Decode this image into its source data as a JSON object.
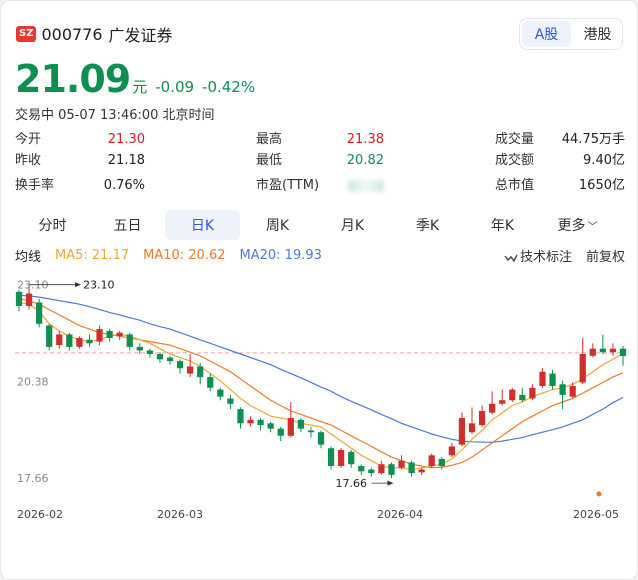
{
  "header": {
    "exchange": "SZ",
    "code": "000776",
    "name": "广发证券",
    "market_tabs": [
      "A股",
      "港股"
    ],
    "active_market": "A股"
  },
  "quote": {
    "price": "21.09",
    "unit": "元",
    "change": "-0.09",
    "change_pct": "-0.42%",
    "status": "交易中 05-07 13:46:00 北京时间"
  },
  "stats": {
    "open_label": "今开",
    "open": "21.30",
    "prev_close_label": "昨收",
    "prev_close": "21.18",
    "turnover_rate_label": "换手率",
    "turnover_rate": "0.76%",
    "high_label": "最高",
    "high": "21.38",
    "low_label": "最低",
    "low": "20.82",
    "pe_label": "市盈(TTM)",
    "volume_label": "成交量",
    "volume": "44.75万手",
    "amount_label": "成交额",
    "amount": "9.40亿",
    "mkt_cap_label": "总市值",
    "mkt_cap": "1650亿"
  },
  "periods": [
    "分时",
    "五日",
    "日K",
    "周K",
    "月K",
    "季K",
    "年K",
    "更多"
  ],
  "active_period": "日K",
  "indicators": {
    "label": "均线",
    "ma5": "MA5: 21.17",
    "ma10": "MA10: 20.62",
    "ma20": "MA20: 19.93",
    "tech_label": "技术标注",
    "adjust_label": "前复权"
  },
  "colors": {
    "up": "#d0302c",
    "down": "#0f8f52",
    "ma5": "#f0a830",
    "ma10": "#ee7a2a",
    "ma20": "#4a7ad8",
    "accent": "#2a5bd7"
  },
  "chart_data": {
    "type": "candlestick",
    "ylim": [
      17.1,
      23.4
    ],
    "y_ticks": [
      "23.10",
      "20.38",
      "17.66"
    ],
    "dates": [
      "2026-02",
      "2026-03",
      "2026-04",
      "2026-05"
    ],
    "annotations": {
      "max": "23.10",
      "min": "17.66"
    },
    "reference_price": 21.18,
    "candles": [
      [
        22.9,
        22.5,
        22.95,
        22.35
      ],
      [
        22.5,
        22.85,
        23.1,
        22.4
      ],
      [
        22.6,
        22.0,
        22.7,
        21.9
      ],
      [
        21.95,
        21.35,
        22.0,
        21.25
      ],
      [
        21.4,
        21.7,
        21.8,
        21.3
      ],
      [
        21.7,
        21.35,
        21.75,
        21.25
      ],
      [
        21.35,
        21.6,
        21.65,
        21.3
      ],
      [
        21.55,
        21.45,
        21.7,
        21.35
      ],
      [
        21.5,
        21.85,
        21.95,
        21.4
      ],
      [
        21.8,
        21.6,
        21.85,
        21.5
      ],
      [
        21.65,
        21.75,
        21.8,
        21.55
      ],
      [
        21.7,
        21.35,
        21.75,
        21.25
      ],
      [
        21.35,
        21.25,
        21.45,
        21.15
      ],
      [
        21.25,
        21.15,
        21.3,
        21.05
      ],
      [
        21.15,
        21.0,
        21.2,
        20.9
      ],
      [
        21.05,
        20.95,
        21.1,
        20.85
      ],
      [
        20.95,
        20.75,
        21.0,
        20.6
      ],
      [
        20.6,
        20.8,
        21.15,
        20.5
      ],
      [
        20.8,
        20.5,
        20.9,
        20.3
      ],
      [
        20.5,
        20.2,
        20.6,
        20.1
      ],
      [
        20.15,
        19.95,
        20.2,
        19.85
      ],
      [
        19.9,
        19.75,
        20.0,
        19.6
      ],
      [
        19.6,
        19.2,
        19.65,
        19.05
      ],
      [
        19.2,
        19.3,
        19.4,
        19.1
      ],
      [
        19.3,
        19.15,
        19.35,
        19.0
      ],
      [
        19.2,
        19.05,
        19.25,
        18.95
      ],
      [
        19.05,
        18.85,
        19.1,
        18.7
      ],
      [
        18.85,
        19.35,
        19.8,
        18.8
      ],
      [
        19.3,
        19.05,
        19.35,
        18.95
      ],
      [
        19.0,
        18.95,
        19.1,
        18.8
      ],
      [
        18.95,
        18.6,
        19.0,
        18.5
      ],
      [
        18.5,
        18.0,
        18.55,
        17.9
      ],
      [
        18.0,
        18.45,
        18.5,
        17.95
      ],
      [
        18.4,
        18.05,
        18.45,
        17.95
      ],
      [
        18.0,
        17.85,
        18.05,
        17.75
      ],
      [
        17.9,
        17.8,
        17.95,
        17.7
      ],
      [
        17.8,
        18.05,
        18.15,
        17.75
      ],
      [
        18.05,
        17.75,
        18.1,
        17.66
      ],
      [
        17.95,
        18.15,
        18.3,
        17.9
      ],
      [
        18.1,
        17.8,
        18.15,
        17.7
      ],
      [
        17.82,
        17.9,
        17.95,
        17.75
      ],
      [
        18.0,
        18.3,
        18.35,
        17.95
      ],
      [
        18.2,
        18.0,
        18.25,
        17.9
      ],
      [
        18.3,
        18.55,
        18.65,
        18.25
      ],
      [
        18.6,
        19.35,
        19.5,
        18.55
      ],
      [
        18.95,
        19.2,
        19.65,
        18.9
      ],
      [
        19.15,
        19.55,
        19.7,
        19.1
      ],
      [
        19.5,
        19.75,
        20.1,
        19.45
      ],
      [
        19.75,
        19.85,
        20.15,
        19.7
      ],
      [
        19.85,
        20.15,
        20.2,
        19.8
      ],
      [
        20.0,
        19.85,
        20.2,
        19.8
      ],
      [
        19.9,
        20.2,
        20.3,
        19.85
      ],
      [
        20.25,
        20.65,
        20.75,
        20.2
      ],
      [
        20.6,
        20.25,
        20.7,
        20.15
      ],
      [
        20.3,
        20.0,
        20.4,
        19.6
      ],
      [
        19.95,
        20.25,
        20.35,
        19.9
      ],
      [
        20.35,
        21.15,
        21.6,
        20.3
      ],
      [
        21.1,
        21.3,
        21.45,
        21.05
      ],
      [
        21.3,
        21.2,
        21.7,
        21.15
      ],
      [
        21.2,
        21.3,
        21.45,
        21.1
      ],
      [
        21.3,
        21.09,
        21.38,
        20.82
      ]
    ],
    "ma5": [
      22.6,
      22.55,
      22.35,
      22.0,
      21.8,
      21.65,
      21.55,
      21.5,
      21.55,
      21.65,
      21.7,
      21.65,
      21.55,
      21.45,
      21.3,
      21.15,
      21.05,
      20.95,
      20.8,
      20.6,
      20.4,
      20.15,
      19.9,
      19.7,
      19.55,
      19.4,
      19.35,
      19.3,
      19.2,
      19.15,
      19.1,
      18.9,
      18.7,
      18.5,
      18.3,
      18.15,
      18.0,
      17.95,
      17.95,
      17.9,
      17.95,
      18.0,
      18.05,
      18.2,
      18.45,
      18.75,
      19.0,
      19.3,
      19.5,
      19.7,
      19.8,
      19.95,
      20.05,
      20.15,
      20.2,
      20.3,
      20.45,
      20.65,
      20.85,
      21.0,
      21.17
    ],
    "ma10": [
      22.7,
      22.65,
      22.55,
      22.4,
      22.25,
      22.1,
      21.95,
      21.85,
      21.75,
      21.7,
      21.65,
      21.6,
      21.55,
      21.5,
      21.45,
      21.4,
      21.3,
      21.2,
      21.1,
      20.95,
      20.8,
      20.65,
      20.45,
      20.25,
      20.05,
      19.85,
      19.7,
      19.55,
      19.45,
      19.35,
      19.25,
      19.15,
      19.0,
      18.85,
      18.7,
      18.55,
      18.4,
      18.25,
      18.15,
      18.05,
      18.0,
      17.95,
      17.97,
      18.02,
      18.1,
      18.25,
      18.45,
      18.65,
      18.85,
      19.05,
      19.25,
      19.4,
      19.55,
      19.7,
      19.8,
      19.9,
      20.05,
      20.2,
      20.35,
      20.5,
      20.62
    ],
    "ma20": [
      22.8,
      22.78,
      22.75,
      22.7,
      22.65,
      22.6,
      22.55,
      22.48,
      22.4,
      22.32,
      22.25,
      22.17,
      22.1,
      22.0,
      21.92,
      21.85,
      21.75,
      21.65,
      21.55,
      21.45,
      21.35,
      21.25,
      21.15,
      21.05,
      20.95,
      20.85,
      20.72,
      20.6,
      20.48,
      20.35,
      20.22,
      20.1,
      19.95,
      19.82,
      19.7,
      19.58,
      19.45,
      19.33,
      19.2,
      19.1,
      19.0,
      18.9,
      18.82,
      18.75,
      18.7,
      18.68,
      18.67,
      18.67,
      18.7,
      18.75,
      18.8,
      18.88,
      18.95,
      19.02,
      19.1,
      19.2,
      19.3,
      19.45,
      19.6,
      19.78,
      19.93
    ]
  }
}
